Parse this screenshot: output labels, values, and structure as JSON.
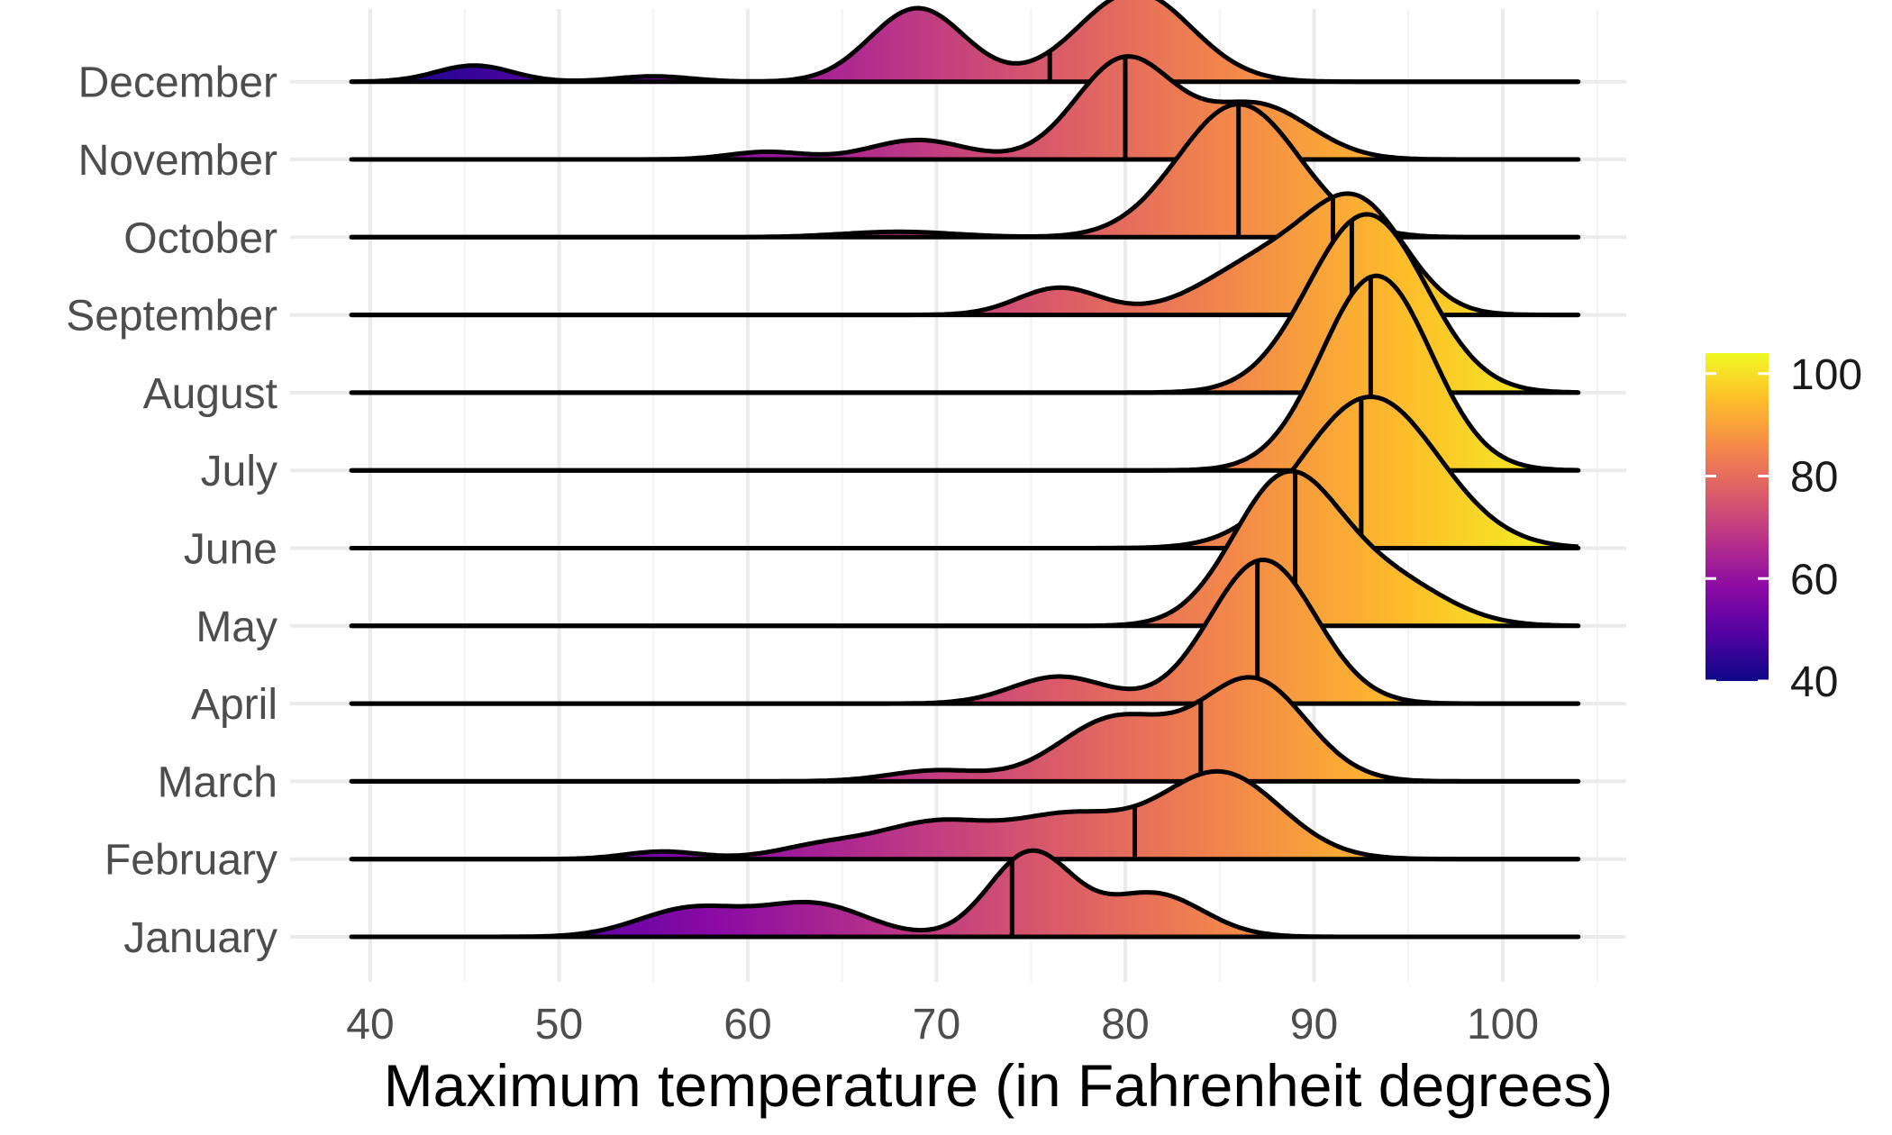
{
  "chart_data": {
    "type": "ridgeline",
    "title": "",
    "xlabel": "Maximum temperature (in Fahrenheit degrees)",
    "ylabel": "",
    "xlim": [
      38,
      106
    ],
    "xticks": [
      40,
      50,
      60,
      70,
      80,
      90,
      100
    ],
    "grid": true,
    "legend": {
      "placement": "right",
      "type": "colorbar",
      "palette": "plasma",
      "range": [
        40,
        104
      ],
      "ticks": [
        40,
        60,
        80,
        100
      ],
      "colors": [
        "#0d0887",
        "#5302a3",
        "#8b0aa5",
        "#b83289",
        "#db5c68",
        "#f48849",
        "#febd2a",
        "#f0f921"
      ]
    },
    "categories": [
      "January",
      "February",
      "March",
      "April",
      "May",
      "June",
      "July",
      "August",
      "September",
      "October",
      "November",
      "December"
    ],
    "series": [
      {
        "name": "January",
        "median": 74,
        "peaks": [
          {
            "m": 57,
            "s": 2.8,
            "h": 0.26
          },
          {
            "m": 63.5,
            "s": 2.8,
            "h": 0.3
          },
          {
            "m": 75,
            "s": 2.2,
            "h": 0.78
          },
          {
            "m": 81.5,
            "s": 2.6,
            "h": 0.4
          }
        ]
      },
      {
        "name": "February",
        "median": 80.5,
        "peaks": [
          {
            "m": 55.5,
            "s": 2,
            "h": 0.07
          },
          {
            "m": 64,
            "s": 2.5,
            "h": 0.12
          },
          {
            "m": 70,
            "s": 3,
            "h": 0.33
          },
          {
            "m": 77,
            "s": 3,
            "h": 0.38
          },
          {
            "m": 85,
            "s": 3.2,
            "h": 0.8
          }
        ]
      },
      {
        "name": "March",
        "median": 84,
        "peaks": [
          {
            "m": 70,
            "s": 2.5,
            "h": 0.1
          },
          {
            "m": 79.5,
            "s": 3,
            "h": 0.58
          },
          {
            "m": 86.8,
            "s": 2.8,
            "h": 0.93
          }
        ]
      },
      {
        "name": "April",
        "median": 87,
        "peaks": [
          {
            "m": 76.5,
            "s": 2.5,
            "h": 0.25
          },
          {
            "m": 87.3,
            "s": 2.8,
            "h": 1.33
          }
        ]
      },
      {
        "name": "May",
        "median": 89,
        "peaks": [
          {
            "m": 88.5,
            "s": 2.8,
            "h": 1.35
          },
          {
            "m": 94,
            "s": 3,
            "h": 0.4
          }
        ]
      },
      {
        "name": "June",
        "median": 92.5,
        "peaks": [
          {
            "m": 93,
            "s": 3.6,
            "h": 1.4
          }
        ]
      },
      {
        "name": "July",
        "median": 93,
        "peaks": [
          {
            "m": 93.3,
            "s": 2.9,
            "h": 1.8
          }
        ]
      },
      {
        "name": "August",
        "median": 92,
        "peaks": [
          {
            "m": 92.8,
            "s": 3.1,
            "h": 1.65
          }
        ]
      },
      {
        "name": "September",
        "median": 91,
        "peaks": [
          {
            "m": 76.5,
            "s": 2.2,
            "h": 0.25
          },
          {
            "m": 88,
            "s": 3.5,
            "h": 0.55
          },
          {
            "m": 92.5,
            "s": 2.5,
            "h": 0.85
          }
        ]
      },
      {
        "name": "October",
        "median": 86,
        "peaks": [
          {
            "m": 68,
            "s": 3,
            "h": 0.05
          },
          {
            "m": 86,
            "s": 3.2,
            "h": 1.23
          }
        ]
      },
      {
        "name": "November",
        "median": 80,
        "peaks": [
          {
            "m": 61,
            "s": 2,
            "h": 0.07
          },
          {
            "m": 69,
            "s": 2.5,
            "h": 0.18
          },
          {
            "m": 80,
            "s": 2.6,
            "h": 0.93
          },
          {
            "m": 87,
            "s": 2.8,
            "h": 0.5
          }
        ]
      },
      {
        "name": "December",
        "median": 76,
        "peaks": [
          {
            "m": 45.5,
            "s": 2,
            "h": 0.15
          },
          {
            "m": 55,
            "s": 2,
            "h": 0.05
          },
          {
            "m": 69,
            "s": 2.5,
            "h": 0.68
          },
          {
            "m": 80.5,
            "s": 3,
            "h": 0.83
          }
        ]
      }
    ]
  }
}
